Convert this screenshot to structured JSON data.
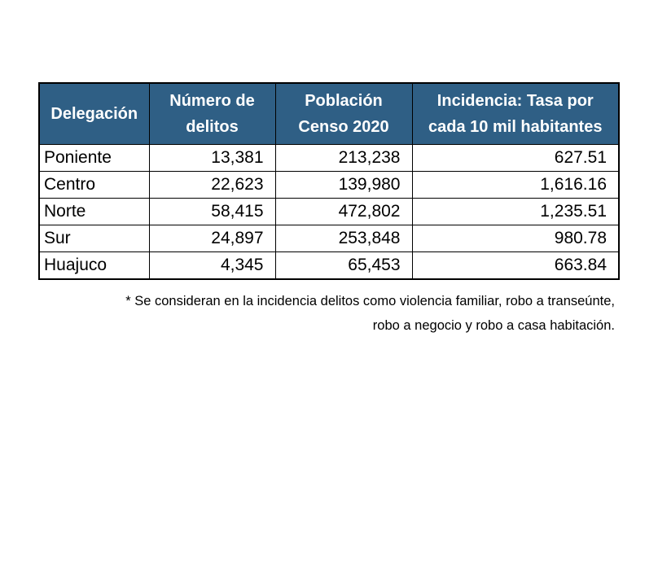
{
  "table": {
    "headers": [
      "Delegación",
      "Número de delitos",
      "Población Censo 2020",
      "Incidencia: Tasa por cada 10 mil habitantes"
    ],
    "rows": [
      [
        "Poniente",
        "13,381",
        "213,238",
        "627.51"
      ],
      [
        "Centro",
        "22,623",
        "139,980",
        "1,616.16"
      ],
      [
        "Norte",
        "58,415",
        "472,802",
        "1,235.51"
      ],
      [
        "Sur",
        "24,897",
        "253,848",
        "980.78"
      ],
      [
        "Huajuco",
        "4,345",
        "65,453",
        "663.84"
      ]
    ],
    "header_color": "#2f5f85"
  },
  "note": {
    "line1": "* Se consideran en la incidencia delitos como violencia familiar, robo a transeúnte,",
    "line2": "robo a negocio y robo a casa habitación."
  }
}
